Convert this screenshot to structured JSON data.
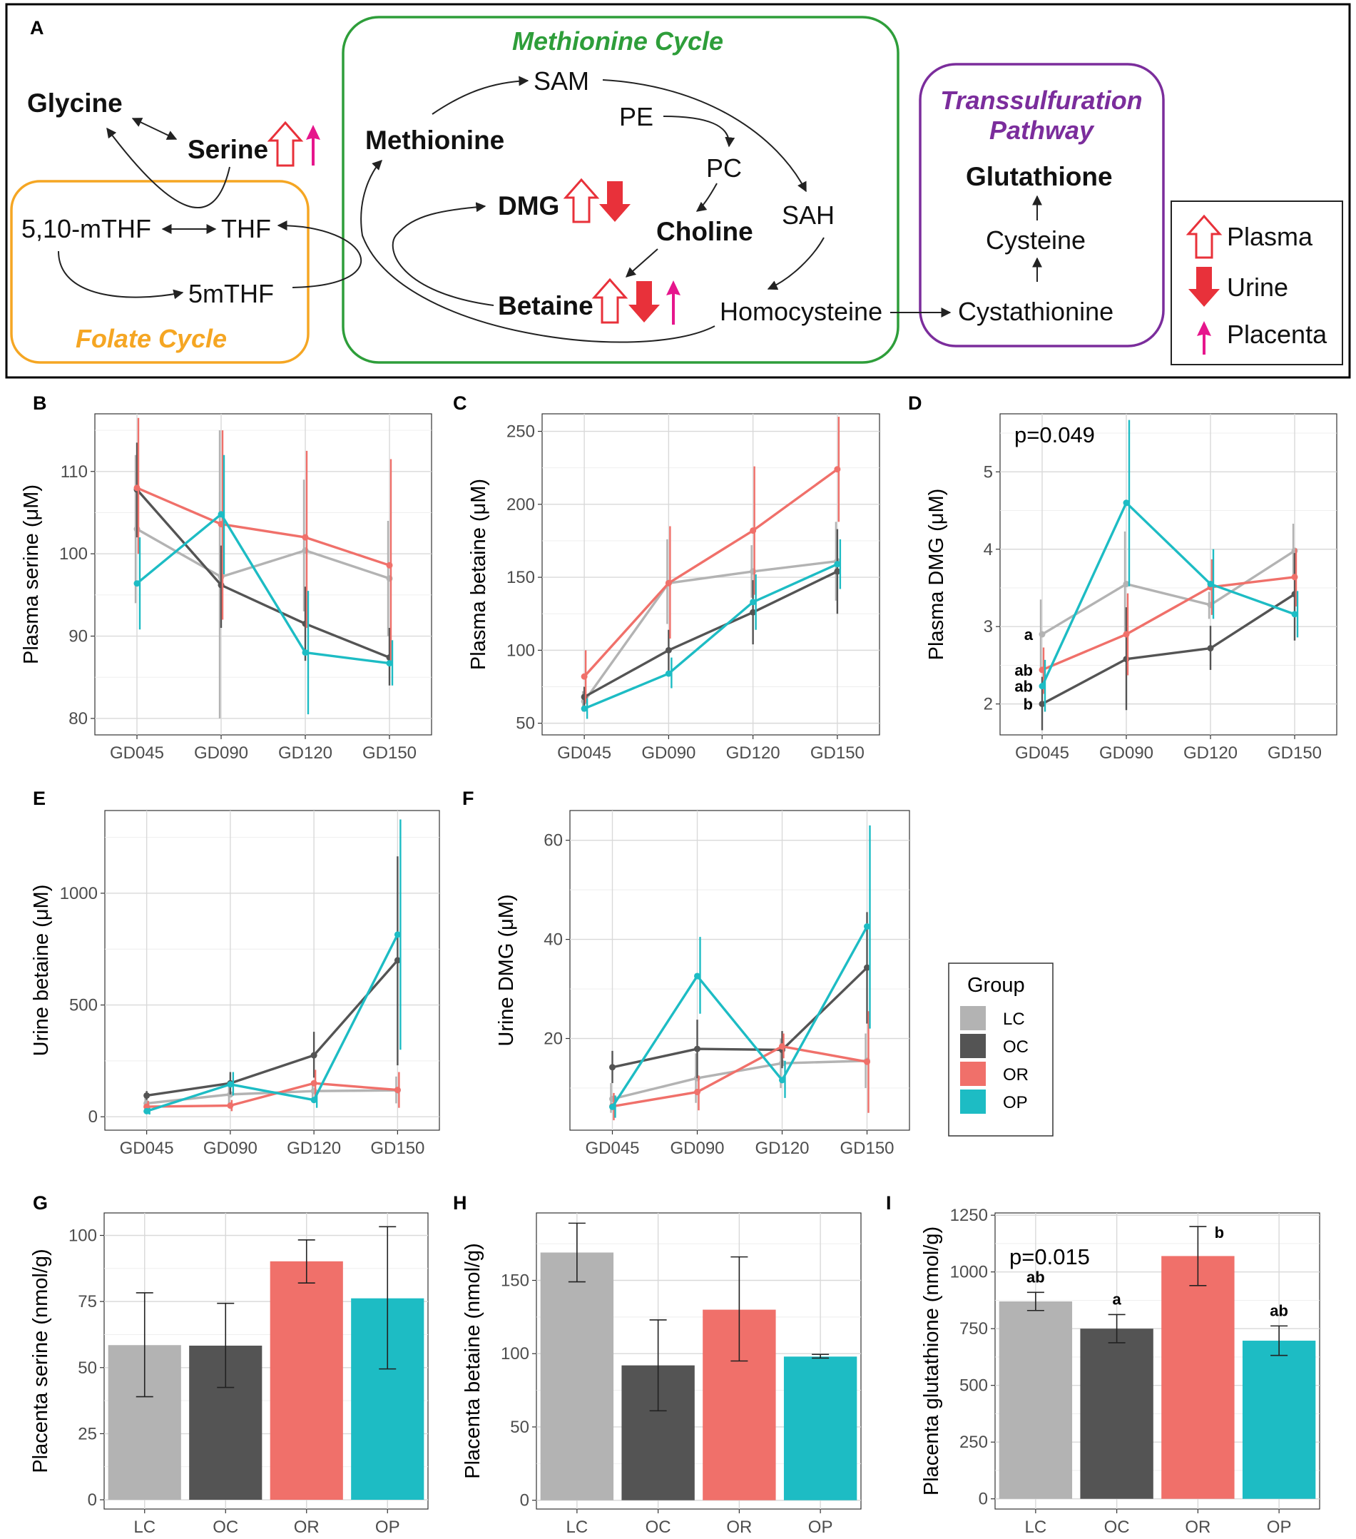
{
  "colors": {
    "LC": "#b3b3b3",
    "OC": "#545454",
    "OR": "#f0706a",
    "OP": "#1dbcc4",
    "folate": "#f5a623",
    "methionine": "#2e9e3a",
    "transsulf": "#7b2d9c",
    "plasma_arrow": "#e8313a",
    "urine_arrow": "#e8313a",
    "placenta_arrow": "#e6168c"
  },
  "diagram": {
    "panel_label": "A",
    "methionine_cycle_title": "Methionine Cycle",
    "folate_cycle_title": "Folate Cycle",
    "transsulfuration_title_1": "Transsulfuration",
    "transsulfuration_title_2": "Pathway",
    "nodes": {
      "glycine": "Glycine",
      "serine": "Serine",
      "mthf510": "5,10-mTHF",
      "thf": "THF",
      "mthf5": "5mTHF",
      "methionine": "Methionine",
      "sam": "SAM",
      "pe": "PE",
      "pc": "PC",
      "sah": "SAH",
      "dmg": "DMG",
      "choline": "Choline",
      "betaine": "Betaine",
      "homocysteine": "Homocysteine",
      "glutathione": "Glutathione",
      "cysteine": "Cysteine",
      "cystathionine": "Cystathionine"
    },
    "legend": {
      "plasma": "Plasma",
      "urine": "Urine",
      "placenta": "Placenta"
    }
  },
  "group_legend": {
    "title": "Group",
    "items": [
      "LC",
      "OC",
      "OR",
      "OP"
    ]
  },
  "chart_data": [
    {
      "panel": "B",
      "type": "line",
      "ylabel": "Plasma serine (μM)",
      "categories": [
        "GD045",
        "GD090",
        "GD120",
        "GD150"
      ],
      "ylim": [
        78,
        117
      ],
      "yticks": [
        80,
        90,
        100,
        110
      ],
      "series": [
        {
          "name": "LC",
          "values": [
            103,
            97.2,
            100.4,
            97
          ],
          "err": [
            [
              94,
              112
            ],
            [
              80,
              115
            ],
            [
              93,
              109
            ],
            [
              90,
              104
            ]
          ]
        },
        {
          "name": "OC",
          "values": [
            107.8,
            96.2,
            91.5,
            87.4
          ],
          "err": [
            [
              102,
              113.5
            ],
            [
              91,
              101
            ],
            [
              87,
              96
            ],
            [
              84,
              91
            ]
          ]
        },
        {
          "name": "OR",
          "values": [
            108,
            103.6,
            102,
            98.6
          ],
          "err": [
            [
              100,
              116.5
            ],
            [
              92,
              115
            ],
            [
              91,
              112.5
            ],
            [
              87,
              111.5
            ]
          ]
        },
        {
          "name": "OP",
          "values": [
            96.4,
            104.8,
            88,
            86.7
          ],
          "err": [
            [
              90.8,
              102
            ],
            [
              97.5,
              112
            ],
            [
              80.5,
              95.5
            ],
            [
              84,
              89.5
            ]
          ]
        }
      ]
    },
    {
      "panel": "C",
      "type": "line",
      "ylabel": "Plasma betaine (μM)",
      "categories": [
        "GD045",
        "GD090",
        "GD120",
        "GD150"
      ],
      "ylim": [
        42,
        262
      ],
      "yticks": [
        50,
        100,
        150,
        200,
        250
      ],
      "series": [
        {
          "name": "LC",
          "values": [
            65,
            146,
            154,
            161
          ],
          "err": [
            [
              58,
              72
            ],
            [
              118,
              176
            ],
            [
              136,
              172
            ],
            [
              134,
              188
            ]
          ]
        },
        {
          "name": "OC",
          "values": [
            68,
            100,
            126,
            154
          ],
          "err": [
            [
              62,
              75
            ],
            [
              86,
              114
            ],
            [
              104,
              148
            ],
            [
              125,
              183
            ]
          ]
        },
        {
          "name": "OR",
          "values": [
            82,
            146,
            182,
            224
          ],
          "err": [
            [
              64,
              100
            ],
            [
              108,
              185
            ],
            [
              138,
              226
            ],
            [
              188,
              260
            ]
          ]
        },
        {
          "name": "OP",
          "values": [
            60,
            84,
            133,
            159
          ],
          "err": [
            [
              53,
              67
            ],
            [
              74,
              95
            ],
            [
              114,
              152
            ],
            [
              142,
              176
            ]
          ]
        }
      ]
    },
    {
      "panel": "D",
      "type": "line",
      "ylabel": "Plasma DMG (μM)",
      "categories": [
        "GD045",
        "GD090",
        "GD120",
        "GD150"
      ],
      "ylim": [
        1.6,
        5.75
      ],
      "yticks": [
        2,
        3,
        4,
        5
      ],
      "annotation": "p=0.049",
      "sig_labels": [
        "a",
        "ab",
        "ab",
        "b"
      ],
      "series": [
        {
          "name": "LC",
          "values": [
            2.9,
            3.55,
            3.28,
            3.98
          ],
          "err": [
            [
              2.45,
              3.35
            ],
            [
              2.87,
              4.23
            ],
            [
              3.1,
              3.45
            ],
            [
              3.62,
              4.33
            ]
          ]
        },
        {
          "name": "OC",
          "values": [
            2.0,
            2.58,
            2.72,
            3.42
          ],
          "err": [
            [
              1.66,
              2.35
            ],
            [
              1.92,
              3.25
            ],
            [
              2.44,
              3.01
            ],
            [
              2.82,
              3.95
            ]
          ]
        },
        {
          "name": "OR",
          "values": [
            2.44,
            2.9,
            3.51,
            3.64
          ],
          "err": [
            [
              2.13,
              2.73
            ],
            [
              2.37,
              3.43
            ],
            [
              3.15,
              3.87
            ],
            [
              3.26,
              4.01
            ]
          ]
        },
        {
          "name": "OP",
          "values": [
            2.23,
            4.6,
            3.55,
            3.16
          ],
          "err": [
            [
              1.9,
              2.57
            ],
            [
              3.52,
              5.67
            ],
            [
              3.1,
              4.0
            ],
            [
              2.86,
              3.46
            ]
          ]
        }
      ]
    },
    {
      "panel": "E",
      "type": "line",
      "ylabel": "Urine betaine (μM)",
      "categories": [
        "GD045",
        "GD090",
        "GD120",
        "GD150"
      ],
      "ylim": [
        -60,
        1370
      ],
      "yticks": [
        0,
        500,
        1000
      ],
      "series": [
        {
          "name": "LC",
          "values": [
            60,
            100,
            115,
            118
          ],
          "err": [
            [
              30,
              90
            ],
            [
              40,
              160
            ],
            [
              70,
              160
            ],
            [
              60,
              180
            ]
          ]
        },
        {
          "name": "OC",
          "values": [
            95,
            150,
            275,
            700
          ],
          "err": [
            [
              75,
              115
            ],
            [
              100,
              200
            ],
            [
              175,
              380
            ],
            [
              230,
              1165
            ]
          ]
        },
        {
          "name": "OR",
          "values": [
            45,
            50,
            150,
            120
          ],
          "err": [
            [
              20,
              70
            ],
            [
              25,
              75
            ],
            [
              90,
              210
            ],
            [
              40,
              200
            ]
          ]
        },
        {
          "name": "OP",
          "values": [
            25,
            145,
            75,
            815
          ],
          "err": [
            [
              10,
              40
            ],
            [
              95,
              200
            ],
            [
              40,
              110
            ],
            [
              300,
              1330
            ]
          ]
        }
      ]
    },
    {
      "panel": "F",
      "type": "line",
      "ylabel": "Urine DMG (μM)",
      "categories": [
        "GD045",
        "GD090",
        "GD120",
        "GD150"
      ],
      "ylim": [
        1.5,
        66
      ],
      "yticks": [
        20,
        40,
        60
      ],
      "series": [
        {
          "name": "LC",
          "values": [
            7.8,
            12,
            15,
            15.5
          ],
          "err": [
            [
              5,
              11
            ],
            [
              7,
              17
            ],
            [
              10,
              20
            ],
            [
              10,
              21
            ]
          ]
        },
        {
          "name": "OC",
          "values": [
            14.2,
            17.9,
            17.7,
            34.3
          ],
          "err": [
            [
              11,
              17.5
            ],
            [
              12,
              23.8
            ],
            [
              14,
              21.5
            ],
            [
              23,
              45.5
            ]
          ]
        },
        {
          "name": "OR",
          "values": [
            6.3,
            9.2,
            18.4,
            15.3
          ],
          "err": [
            [
              3.5,
              9
            ],
            [
              5.5,
              12.5
            ],
            [
              16,
              21
            ],
            [
              5,
              25.5
            ]
          ]
        },
        {
          "name": "OP",
          "values": [
            6.2,
            32.6,
            11.6,
            42.6
          ],
          "err": [
            [
              4,
              8.5
            ],
            [
              25,
              40.5
            ],
            [
              8,
              15.5
            ],
            [
              22,
              63
            ]
          ]
        }
      ]
    },
    {
      "panel": "G",
      "type": "bar",
      "ylabel": "Placenta serine (nmol/g)",
      "categories": [
        "LC",
        "OC",
        "OR",
        "OP"
      ],
      "ylim": [
        -3.5,
        108.5
      ],
      "yticks": [
        0,
        25,
        50,
        75,
        100
      ],
      "values": [
        58.5,
        58.3,
        90.2,
        76.2
      ],
      "err": [
        [
          39,
          78.3
        ],
        [
          42.5,
          74.3
        ],
        [
          82,
          98.3
        ],
        [
          49.5,
          103.3
        ]
      ]
    },
    {
      "panel": "H",
      "type": "bar",
      "ylabel": "Placenta betaine (nmol/g)",
      "categories": [
        "LC",
        "OC",
        "OR",
        "OP"
      ],
      "ylim": [
        -6,
        196
      ],
      "yticks": [
        0,
        50,
        100,
        150
      ],
      "values": [
        169,
        92,
        130,
        98
      ],
      "err": [
        [
          149,
          189
        ],
        [
          61,
          123
        ],
        [
          95,
          166
        ],
        [
          97,
          99.5
        ]
      ]
    },
    {
      "panel": "I",
      "type": "bar",
      "ylabel": "Placenta glutathione (nmol/g)",
      "categories": [
        "LC",
        "OC",
        "OR",
        "OP"
      ],
      "ylim": [
        -45,
        1260
      ],
      "yticks": [
        0,
        250,
        500,
        750,
        1000,
        1250
      ],
      "annotation": "p=0.015",
      "sig_labels": [
        "ab",
        "a",
        "b",
        "ab"
      ],
      "values": [
        870,
        750,
        1070,
        697
      ],
      "err": [
        [
          830,
          910
        ],
        [
          688,
          812
        ],
        [
          940,
          1200
        ],
        [
          632,
          762
        ]
      ]
    }
  ]
}
